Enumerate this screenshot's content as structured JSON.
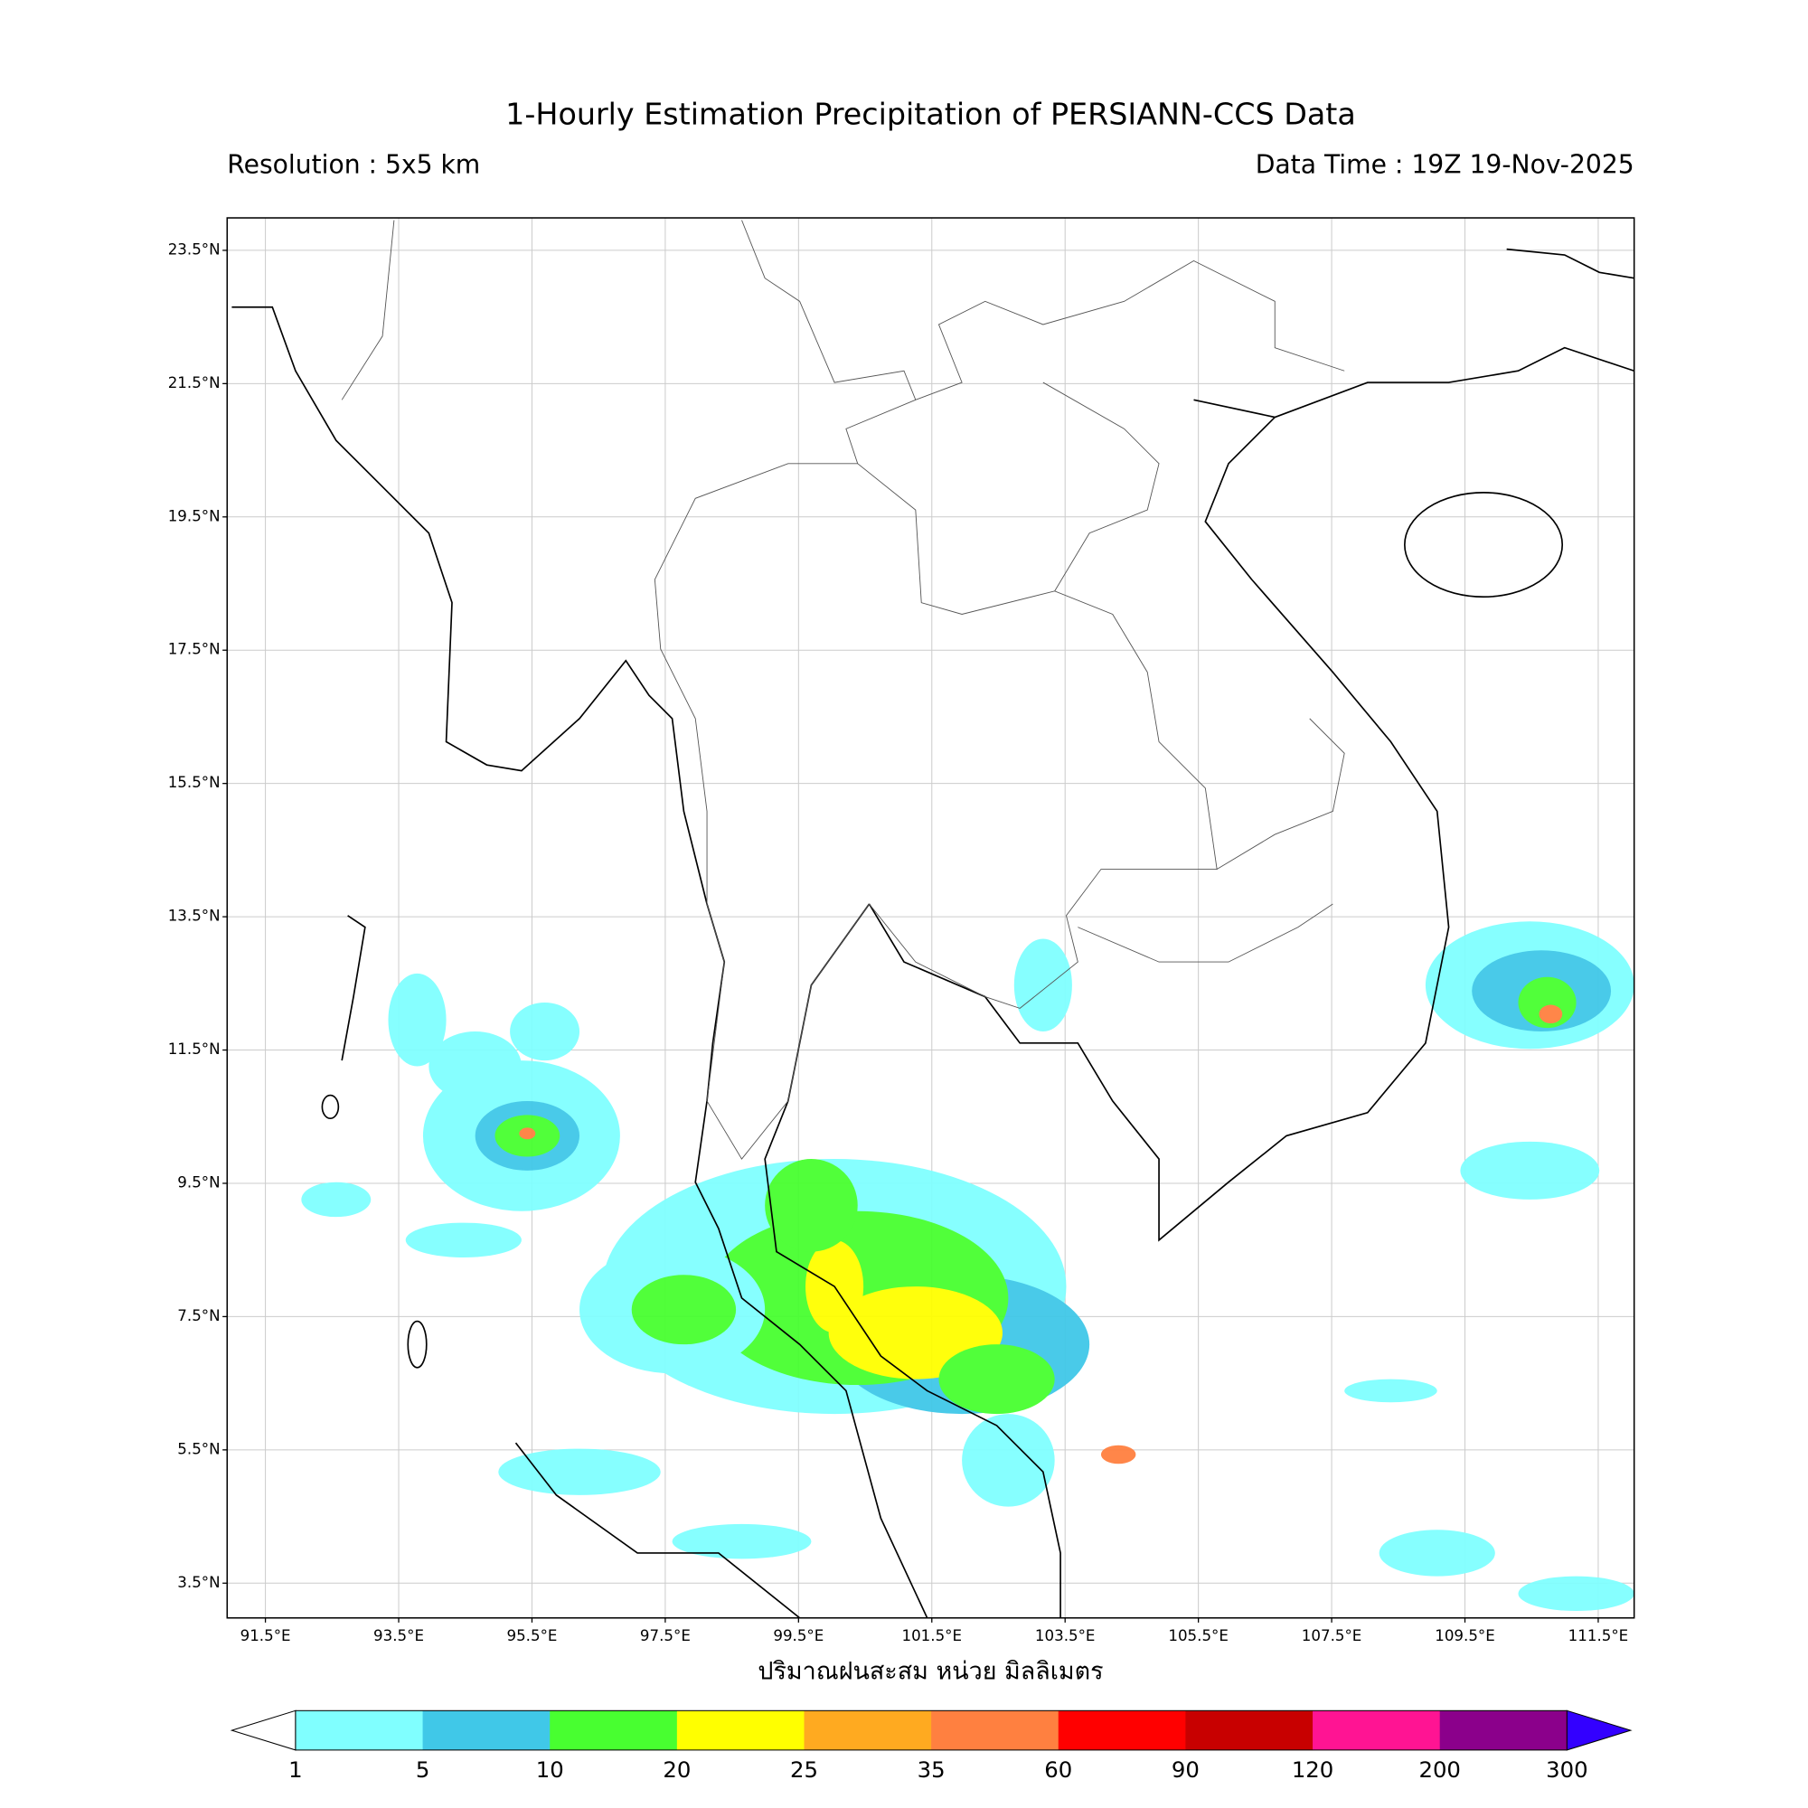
{
  "map": {
    "title": "1-Hourly Estimation Precipitation of PERSIANN-CCS Data",
    "resolution": "Resolution : 5x5 km",
    "data_time": "Data Time : 19Z 19-Nov-2025",
    "lat_ticks": [
      "23.5°N",
      "21.5°N",
      "19.5°N",
      "17.5°N",
      "15.5°N",
      "13.5°N",
      "11.5°N",
      "9.5°N",
      "7.5°N",
      "5.5°N",
      "3.5°N"
    ],
    "lon_ticks": [
      "91.5°E",
      "93.5°E",
      "95.5°E",
      "97.5°E",
      "99.5°E",
      "101.5°E",
      "103.5°E",
      "105.5°E",
      "107.5°E",
      "109.5°E",
      "111.5°E"
    ],
    "x_label": "ปริมาณฝนสะสม หน่วย มิลลิเมตร",
    "colorbar": {
      "levels": [
        1,
        5,
        10,
        20,
        25,
        35,
        60,
        90,
        120,
        200,
        300
      ],
      "colors": [
        "#80ffff",
        "#40c8e8",
        "#48ff30",
        "#ffff00",
        "#ffaa20",
        "#ff8040",
        "#ff0000",
        "#c80000",
        "#ff1493",
        "#8b008b"
      ],
      "under_color": "#ffffff",
      "over_color": "#3300ff"
    }
  }
}
